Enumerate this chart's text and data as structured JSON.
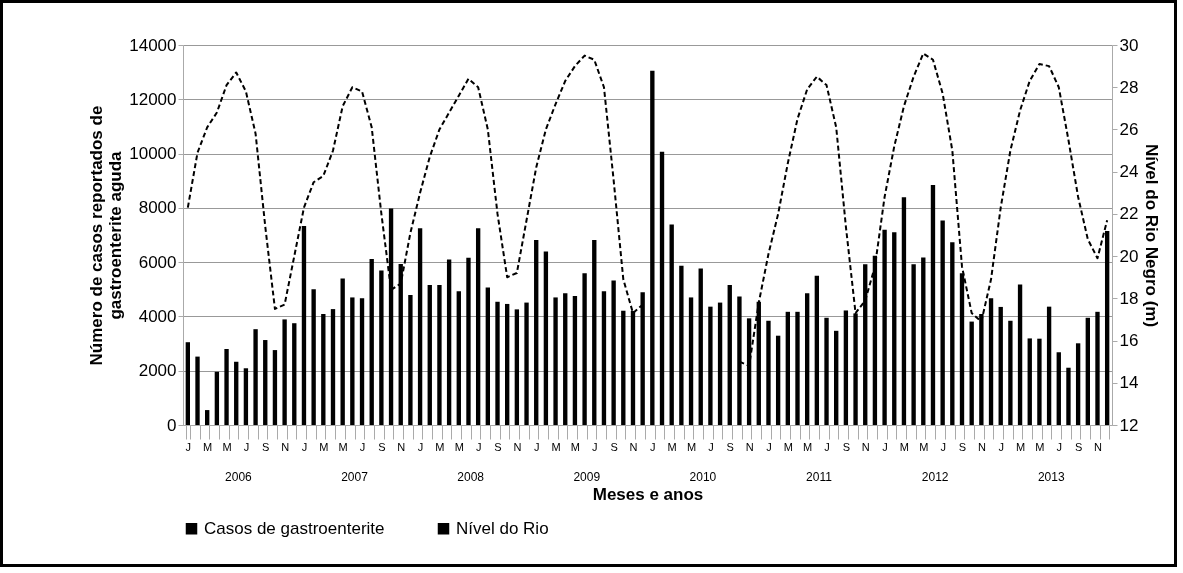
{
  "chart_data": {
    "type": "bar",
    "xlabel": "Meses e anos",
    "ylabel": "Número de casos reportados de\ngastroenterite  aguda",
    "y2label": "Nível do Rio Negro (m)",
    "categories": [
      "J",
      null,
      "M",
      null,
      "M",
      null,
      "J",
      null,
      "S",
      null,
      "N",
      null,
      "J",
      null,
      "M",
      null,
      "M",
      null,
      "J",
      null,
      "S",
      null,
      "N",
      null,
      "J",
      null,
      "M",
      null,
      "M",
      null,
      "J",
      null,
      "S",
      null,
      "N",
      null,
      "J",
      null,
      "M",
      null,
      "M",
      null,
      "J",
      null,
      "S",
      null,
      "N",
      null,
      "J",
      null,
      "M",
      null,
      "M",
      null,
      "J",
      null,
      "S",
      null,
      "N",
      null,
      "J",
      null,
      "M",
      null,
      "M",
      null,
      "J",
      null,
      "S",
      null,
      "N",
      null,
      "J",
      null,
      "M",
      null,
      "M",
      null,
      "J",
      null,
      "S",
      null,
      "N",
      null,
      "J",
      null,
      "M",
      null,
      "M",
      null,
      "J",
      null,
      "S",
      null,
      "N",
      null
    ],
    "annotations": [
      "2006",
      "2007",
      "2008",
      "2009",
      "2010",
      "2011",
      "2012",
      "2013"
    ],
    "series": [
      {
        "name": "Casos de gastroenterite",
        "color": "#000000",
        "values": [
          3050,
          2520,
          550,
          1960,
          2800,
          2330,
          2090,
          3530,
          3130,
          2760,
          3890,
          3750,
          7330,
          5000,
          4090,
          4270,
          5400,
          4700,
          4670,
          6120,
          5690,
          7980,
          5930,
          4790,
          7250,
          5160,
          5160,
          6100,
          4930,
          6160,
          7250,
          5070,
          4540,
          4460,
          4260,
          4510,
          6820,
          6390,
          4700,
          4850,
          4750,
          5590,
          6820,
          4930,
          5320,
          4210,
          4200,
          4890,
          13050,
          10070,
          7390,
          5870,
          4700,
          5770,
          4360,
          4510,
          5160,
          4730,
          3930,
          4540,
          3840,
          3290,
          4170,
          4170,
          4850,
          5500,
          3950,
          3470,
          4220,
          4110,
          5920,
          6240,
          7190,
          7100,
          8390,
          5920,
          6170,
          8840,
          7530,
          6730,
          5590,
          3810,
          4090,
          4670,
          4350,
          3840,
          5180,
          3190,
          3180,
          4360,
          2680,
          2110,
          3010,
          3950,
          4170,
          7150
        ]
      },
      {
        "name": "Nível do Rio",
        "type": "line",
        "axis": "y2",
        "color": "#000000",
        "line_style": "dashed",
        "values": [
          22.3,
          24.9,
          26.1,
          26.8,
          28.1,
          28.7,
          27.8,
          25.8,
          21.4,
          17.5,
          17.7,
          20.0,
          22.3,
          23.5,
          23.8,
          25.0,
          27.1,
          28.0,
          27.8,
          26.1,
          22.0,
          18.4,
          18.7,
          21.1,
          23.0,
          24.7,
          26.0,
          26.8,
          27.6,
          28.4,
          28.0,
          26.0,
          22.0,
          19.0,
          19.2,
          21.7,
          24.2,
          26.0,
          27.2,
          28.3,
          29.0,
          29.5,
          29.3,
          28.0,
          23.6,
          18.9,
          17.3,
          17.7,
          null,
          null,
          null,
          null,
          null,
          null,
          null,
          null,
          null,
          15.0,
          14.8,
          17.8,
          20.1,
          22.0,
          24.4,
          26.5,
          27.9,
          28.5,
          28.1,
          26.1,
          21.4,
          17.3,
          17.9,
          19.5,
          22.8,
          25.2,
          27.1,
          28.5,
          29.6,
          29.3,
          27.7,
          25.0,
          19.5,
          17.3,
          16.9,
          18.9,
          22.3,
          25.0,
          26.9,
          28.3,
          29.1,
          29.0,
          28.0,
          25.5,
          22.8,
          20.8,
          19.9,
          21.7
        ]
      }
    ],
    "ylim": [
      0,
      14000
    ],
    "yticks": [
      0,
      2000,
      4000,
      6000,
      8000,
      10000,
      12000,
      14000
    ],
    "y2lim": [
      12,
      30
    ],
    "y2ticks": [
      12,
      14,
      16,
      18,
      20,
      22,
      24,
      26,
      28,
      30
    ],
    "grid": "y",
    "legend": "bottom"
  }
}
